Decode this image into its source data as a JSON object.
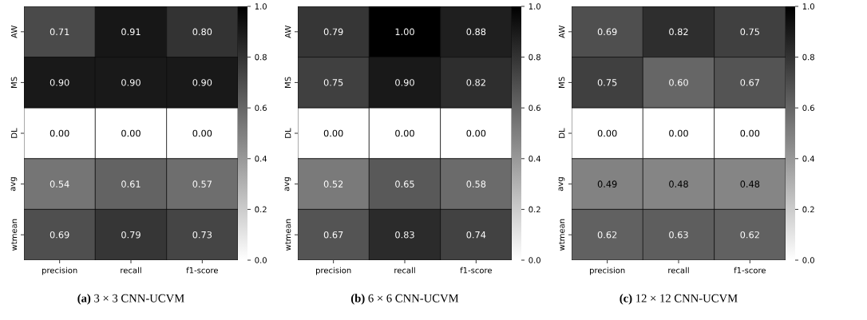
{
  "chart_data": [
    {
      "type": "heatmap",
      "categories": [
        "precision",
        "recall",
        "f1-score"
      ],
      "y_categories": [
        "AW",
        "MS",
        "DL",
        "avg",
        "wtmean"
      ],
      "cells": [
        [
          0.71,
          0.91,
          0.8
        ],
        [
          0.9,
          0.9,
          0.9
        ],
        [
          0.0,
          0.0,
          0.0
        ],
        [
          0.54,
          0.61,
          0.57
        ],
        [
          0.69,
          0.79,
          0.73
        ]
      ],
      "cell_labels": [
        [
          "0.71",
          "0.91",
          "0.80"
        ],
        [
          "0.90",
          "0.90",
          "0.90"
        ],
        [
          "0.00",
          "0.00",
          "0.00"
        ],
        [
          "0.54",
          "0.61",
          "0.57"
        ],
        [
          "0.69",
          "0.79",
          "0.73"
        ]
      ],
      "clim": [
        0,
        1
      ],
      "cticks": [
        {
          "value": 0,
          "label": "0.0"
        },
        {
          "value": 0.2,
          "label": "0.2"
        },
        {
          "value": 0.4,
          "label": "0.4"
        },
        {
          "value": 0.6,
          "label": "0.6"
        },
        {
          "value": 0.8,
          "label": "0.8"
        },
        {
          "value": 1,
          "label": "1.0"
        }
      ],
      "annotations": [
        "**(a)** 3 × 3 CNN-UCVM"
      ]
    },
    {
      "type": "heatmap",
      "categories": [
        "precision",
        "recall",
        "f1-score"
      ],
      "y_categories": [
        "AW",
        "MS",
        "DL",
        "avg",
        "wtmean"
      ],
      "cells": [
        [
          0.79,
          1.0,
          0.88
        ],
        [
          0.75,
          0.9,
          0.82
        ],
        [
          0.0,
          0.0,
          0.0
        ],
        [
          0.52,
          0.65,
          0.58
        ],
        [
          0.67,
          0.83,
          0.74
        ]
      ],
      "cell_labels": [
        [
          "0.79",
          "1.00",
          "0.88"
        ],
        [
          "0.75",
          "0.90",
          "0.82"
        ],
        [
          "0.00",
          "0.00",
          "0.00"
        ],
        [
          "0.52",
          "0.65",
          "0.58"
        ],
        [
          "0.67",
          "0.83",
          "0.74"
        ]
      ],
      "clim": [
        0,
        1
      ],
      "cticks": [
        {
          "value": 0,
          "label": "0.0"
        },
        {
          "value": 0.2,
          "label": "0.2"
        },
        {
          "value": 0.4,
          "label": "0.4"
        },
        {
          "value": 0.6,
          "label": "0.6"
        },
        {
          "value": 0.8,
          "label": "0.8"
        },
        {
          "value": 1,
          "label": "1.0"
        }
      ],
      "annotations": [
        "**(b)** 6 × 6 CNN-UCVM"
      ]
    },
    {
      "type": "heatmap",
      "categories": [
        "precision",
        "recall",
        "f1-score"
      ],
      "y_categories": [
        "AW",
        "MS",
        "DL",
        "avg",
        "wtmean"
      ],
      "cells": [
        [
          0.69,
          0.82,
          0.75
        ],
        [
          0.75,
          0.6,
          0.67
        ],
        [
          0.0,
          0.0,
          0.0
        ],
        [
          0.49,
          0.48,
          0.48
        ],
        [
          0.62,
          0.63,
          0.62
        ]
      ],
      "cell_labels": [
        [
          "0.69",
          "0.82",
          "0.75"
        ],
        [
          "0.75",
          "0.60",
          "0.67"
        ],
        [
          "0.00",
          "0.00",
          "0.00"
        ],
        [
          "0.49",
          "0.48",
          "0.48"
        ],
        [
          "0.62",
          "0.63",
          "0.62"
        ]
      ],
      "clim": [
        0,
        1
      ],
      "cticks": [
        {
          "value": 0,
          "label": "0.0"
        },
        {
          "value": 0.2,
          "label": "0.2"
        },
        {
          "value": 0.4,
          "label": "0.4"
        },
        {
          "value": 0.6,
          "label": "0.6"
        },
        {
          "value": 0.8,
          "label": "0.8"
        },
        {
          "value": 1,
          "label": "1.0"
        }
      ],
      "annotations": [
        "**(c)** 12 × 12 CNN-UCVM"
      ]
    }
  ]
}
